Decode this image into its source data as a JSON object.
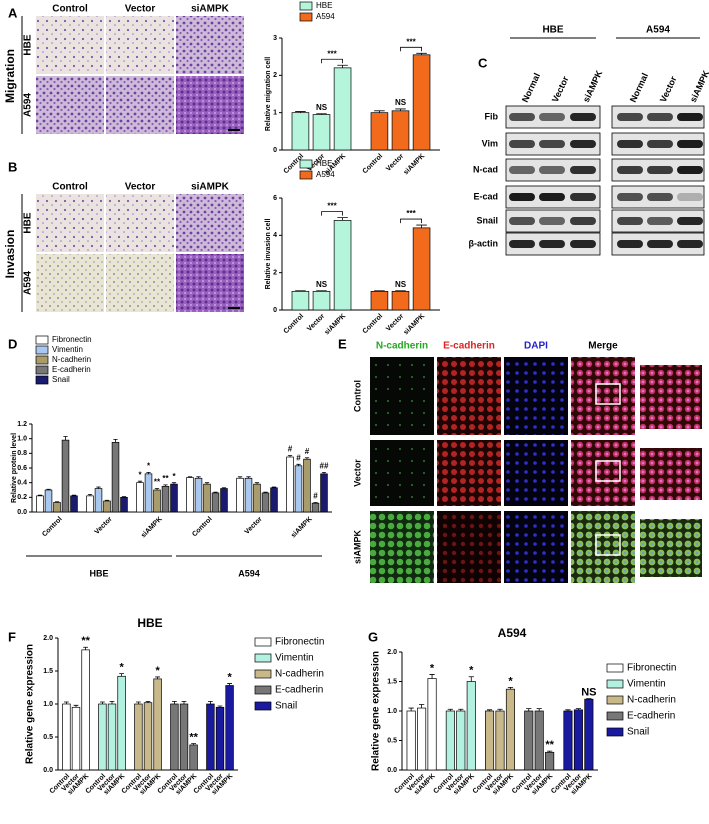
{
  "panel_labels": [
    "A",
    "B",
    "C",
    "D",
    "E",
    "F",
    "G"
  ],
  "migration": {
    "side": "Migration",
    "columns": [
      "Control",
      "Vector",
      "siAMPK"
    ],
    "rows": [
      "HBE",
      "A594"
    ]
  },
  "invasion": {
    "side": "Invasion",
    "columns": [
      "Control",
      "Vector",
      "siAMPK"
    ],
    "rows": [
      "HBE",
      "A594"
    ]
  },
  "blot": {
    "groups": [
      "HBE",
      "A594"
    ],
    "lanes": [
      "Normal",
      "Vector",
      "siAMPK"
    ],
    "rows": [
      "Fib",
      "Vim",
      "N-cad",
      "E-cad",
      "Snail",
      "β-actin"
    ]
  },
  "fluorescence": {
    "columns": [
      "N-cadherin",
      "E-cadherin",
      "DAPI",
      "Merge"
    ],
    "column_colors": [
      "#22aa22",
      "#dd2222",
      "#2222cc",
      "#000000"
    ],
    "rows": [
      "Control",
      "Vector",
      "siAMPK"
    ]
  },
  "chart_data": [
    {
      "type": "bar",
      "y_label": "Relative migration cell",
      "categories": [
        "Control",
        "Vector",
        "siAMPK"
      ],
      "series": [
        {
          "name": "HBE",
          "color": "#b4f5dc",
          "values": [
            1.0,
            0.95,
            2.2
          ],
          "errors": [
            0.03,
            0.02,
            0.07
          ]
        },
        {
          "name": "A594",
          "color": "#f26b1d",
          "values": [
            1.0,
            1.05,
            2.55
          ],
          "errors": [
            0.05,
            0.05,
            0.04
          ]
        }
      ],
      "ylim": [
        0,
        3
      ],
      "yticks": [
        0,
        1,
        2,
        3
      ],
      "annotations": [
        "NS",
        "***",
        "NS",
        "***"
      ]
    },
    {
      "type": "bar",
      "y_label": "Relative invasion cell",
      "categories": [
        "Control",
        "Vector",
        "siAMPK"
      ],
      "series": [
        {
          "name": "HBE",
          "color": "#b4f5dc",
          "values": [
            1.0,
            1.0,
            4.8
          ],
          "errors": [
            0.03,
            0.03,
            0.15
          ]
        },
        {
          "name": "A594",
          "color": "#f26b1d",
          "values": [
            1.0,
            1.0,
            4.4
          ],
          "errors": [
            0.03,
            0.03,
            0.15
          ]
        }
      ],
      "ylim": [
        0,
        6
      ],
      "yticks": [
        0,
        2,
        4,
        6
      ],
      "annotations": [
        "NS",
        "***",
        "NS",
        "***"
      ]
    },
    {
      "type": "bar",
      "y_label": "Relative protein level",
      "categories": [
        "Control",
        "Vector",
        "siAMPK",
        "Control",
        "Vector",
        "siAMPK"
      ],
      "groups": [
        "HBE",
        "A594"
      ],
      "series": [
        {
          "name": "Fibronectin",
          "color": "#ffffff",
          "values": [
            0.22,
            0.22,
            0.4,
            0.47,
            0.46,
            0.75
          ],
          "errors": [
            0.01,
            0.02,
            0.02,
            0.01,
            0.02,
            0.02
          ]
        },
        {
          "name": "Vimentin",
          "color": "#a9c8f0",
          "values": [
            0.3,
            0.32,
            0.52,
            0.46,
            0.46,
            0.63
          ],
          "errors": [
            0.01,
            0.02,
            0.02,
            0.02,
            0.02,
            0.02
          ]
        },
        {
          "name": "N-cadherin",
          "color": "#a89c6c",
          "values": [
            0.13,
            0.15,
            0.3,
            0.38,
            0.38,
            0.72
          ],
          "errors": [
            0.01,
            0.01,
            0.02,
            0.02,
            0.02,
            0.02
          ]
        },
        {
          "name": "E-cadherin",
          "color": "#777777",
          "values": [
            0.98,
            0.95,
            0.35,
            0.26,
            0.26,
            0.12
          ],
          "errors": [
            0.05,
            0.04,
            0.02,
            0.01,
            0.01,
            0.01
          ]
        },
        {
          "name": "Snail",
          "color": "#1a1a6e",
          "values": [
            0.22,
            0.2,
            0.38,
            0.32,
            0.33,
            0.52
          ],
          "errors": [
            0.01,
            0.01,
            0.02,
            0.01,
            0.01,
            0.02
          ]
        }
      ],
      "ylim": [
        0,
        1.2
      ],
      "yticks": [
        {
          "value": 0,
          "label": "0.0"
        },
        0.2,
        0.4,
        0.6,
        0.8,
        {
          "value": 1,
          "label": "1.0"
        },
        1.2
      ],
      "annotations": [
        "*",
        "*",
        "**",
        "**",
        "*",
        "#",
        "#",
        "#",
        "#",
        "##"
      ]
    },
    {
      "type": "bar",
      "title": "HBE",
      "y_label": "Relative gene expression",
      "categories": [
        "Control",
        "Vector",
        "siAMPK"
      ],
      "series": [
        {
          "name": "Fibronectin",
          "color": "#ffffff",
          "values": [
            1.0,
            0.95,
            1.82
          ],
          "errors": [
            0.03,
            0.03,
            0.04
          ]
        },
        {
          "name": "Vimentin",
          "color": "#b2f0e0",
          "values": [
            1.0,
            1.0,
            1.42
          ],
          "errors": [
            0.03,
            0.04,
            0.04
          ]
        },
        {
          "name": "N-cadherin",
          "color": "#c8b88a",
          "values": [
            1.0,
            1.02,
            1.38
          ],
          "errors": [
            0.03,
            0.02,
            0.03
          ]
        },
        {
          "name": "E-cadherin",
          "color": "#777777",
          "values": [
            1.0,
            1.0,
            0.38
          ],
          "errors": [
            0.04,
            0.04,
            0.02
          ]
        },
        {
          "name": "Snail",
          "color": "#1a1aa0",
          "values": [
            1.0,
            0.95,
            1.28
          ],
          "errors": [
            0.04,
            0.02,
            0.03
          ]
        }
      ],
      "ylim": [
        0,
        2
      ],
      "yticks": [
        {
          "value": 0,
          "label": "0.0"
        },
        0.5,
        {
          "value": 1,
          "label": "1.0"
        },
        1.5,
        {
          "value": 2,
          "label": "2.0"
        }
      ],
      "annotations": [
        "**",
        "*",
        "*",
        "**",
        "*"
      ]
    },
    {
      "type": "bar",
      "title": "A594",
      "y_label": "Relative gene expression",
      "categories": [
        "Control",
        "Vector",
        "siAMPK"
      ],
      "series": [
        {
          "name": "Fibronectin",
          "color": "#ffffff",
          "values": [
            1.0,
            1.05,
            1.55
          ],
          "errors": [
            0.05,
            0.06,
            0.07
          ]
        },
        {
          "name": "Vimentin",
          "color": "#b2f0e0",
          "values": [
            1.0,
            1.0,
            1.5
          ],
          "errors": [
            0.03,
            0.03,
            0.08
          ]
        },
        {
          "name": "N-cadherin",
          "color": "#c8b88a",
          "values": [
            1.0,
            1.0,
            1.37
          ],
          "errors": [
            0.02,
            0.03,
            0.03
          ]
        },
        {
          "name": "E-cadherin",
          "color": "#777777",
          "values": [
            1.0,
            1.0,
            0.3
          ],
          "errors": [
            0.04,
            0.04,
            0.02
          ]
        },
        {
          "name": "Snail",
          "color": "#1a1aa0",
          "values": [
            1.0,
            1.02,
            1.2
          ],
          "errors": [
            0.02,
            0.02,
            0.01
          ]
        }
      ],
      "ylim": [
        0,
        2
      ],
      "yticks": [
        {
          "value": 0,
          "label": "0.0"
        },
        0.5,
        {
          "value": 1,
          "label": "1.0"
        },
        1.5,
        {
          "value": 2,
          "label": "2.0"
        }
      ],
      "annotations": [
        "*",
        "*",
        "*",
        "**",
        "NS"
      ]
    }
  ]
}
